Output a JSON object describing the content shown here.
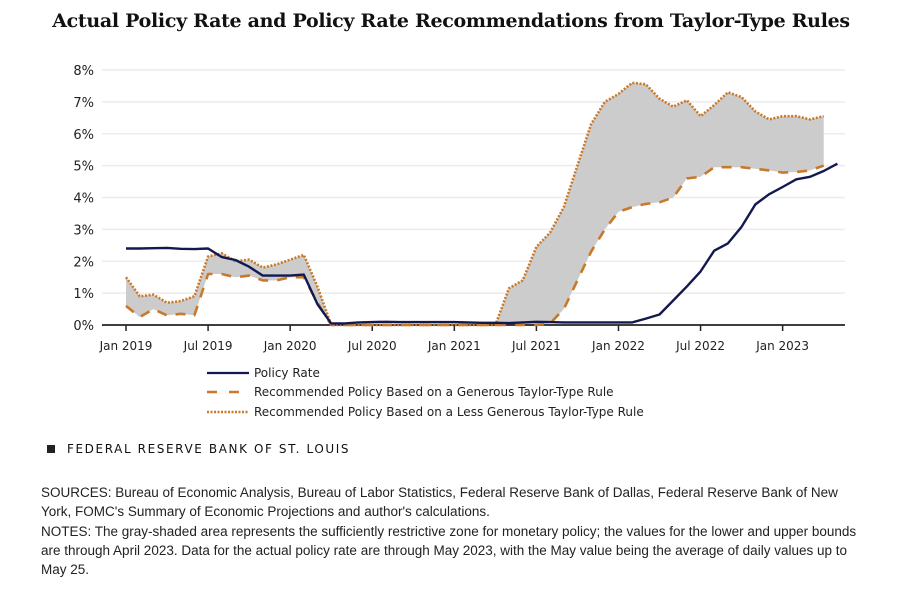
{
  "chart_data": {
    "type": "line",
    "title": "Actual Policy Rate and Policy Rate Recommendations from Taylor-Type Rules",
    "xlabel": "",
    "ylabel": "",
    "ylim": [
      0,
      8
    ],
    "y_ticks": [
      "0%",
      "1%",
      "2%",
      "3%",
      "4%",
      "5%",
      "6%",
      "7%",
      "8%"
    ],
    "x_ticks": [
      "Jan 2019",
      "Jul 2019",
      "Jan 2020",
      "Jul 2020",
      "Jan 2021",
      "Jul 2021",
      "Jan 2022",
      "Jul 2022",
      "Jan 2023"
    ],
    "x_tick_month_index": [
      0,
      6,
      12,
      18,
      24,
      30,
      36,
      42,
      48
    ],
    "x_start": "Jan 2019",
    "x_end": "May 2023",
    "grid": true,
    "legend_position": "bottom",
    "shaded_area": "between Generous (lower) and Less Generous (upper) rule recommendations",
    "series": [
      {
        "name": "Policy Rate",
        "style": "solid",
        "color": "#13194f",
        "start_month_index": 0,
        "values": [
          2.4,
          2.4,
          2.41,
          2.42,
          2.39,
          2.38,
          2.4,
          2.13,
          2.04,
          1.83,
          1.55,
          1.55,
          1.55,
          1.58,
          0.65,
          0.05,
          0.05,
          0.08,
          0.09,
          0.1,
          0.09,
          0.09,
          0.09,
          0.09,
          0.09,
          0.08,
          0.07,
          0.07,
          0.06,
          0.08,
          0.1,
          0.09,
          0.08,
          0.08,
          0.08,
          0.08,
          0.08,
          0.08,
          0.2,
          0.33,
          0.77,
          1.21,
          1.68,
          2.33,
          2.56,
          3.08,
          3.78,
          4.1,
          4.33,
          4.57,
          4.65,
          4.83,
          5.06
        ]
      },
      {
        "name": "Recommended Policy Based on a Generous Taylor-Type Rule",
        "style": "dashed",
        "color": "#c9792a",
        "start_month_index": 0,
        "values": [
          0.6,
          0.25,
          0.5,
          0.3,
          0.35,
          0.3,
          1.6,
          1.6,
          1.5,
          1.55,
          1.4,
          1.4,
          1.5,
          1.5,
          0.7,
          0.0,
          0.0,
          0.0,
          0.0,
          0.0,
          0.0,
          0.0,
          0.0,
          0.0,
          0.0,
          0.0,
          0.0,
          0.0,
          0.0,
          0.0,
          0.0,
          0.05,
          0.5,
          1.4,
          2.3,
          3.0,
          3.55,
          3.7,
          3.8,
          3.85,
          4.0,
          4.6,
          4.65,
          4.95,
          4.95,
          4.95,
          4.9,
          4.85,
          4.78,
          4.8,
          4.85,
          5.0
        ]
      },
      {
        "name": "Recommended Policy Based on a Less Generous Taylor-Type Rule",
        "style": "dotted",
        "color": "#c9792a",
        "start_month_index": 0,
        "values": [
          1.5,
          0.9,
          0.95,
          0.7,
          0.75,
          0.9,
          2.15,
          2.25,
          2.0,
          2.05,
          1.8,
          1.9,
          2.05,
          2.2,
          1.2,
          0.0,
          0.0,
          0.0,
          0.0,
          0.0,
          0.0,
          0.0,
          0.0,
          0.0,
          0.0,
          0.0,
          0.0,
          0.0,
          1.15,
          1.4,
          2.45,
          2.9,
          3.7,
          5.0,
          6.3,
          7.0,
          7.25,
          7.6,
          7.55,
          7.1,
          6.85,
          7.05,
          6.55,
          6.9,
          7.3,
          7.15,
          6.7,
          6.45,
          6.55,
          6.55,
          6.45,
          6.55
        ]
      }
    ],
    "colors": {
      "policy_rate": "#13194f",
      "rules": "#c9792a",
      "shade": "#cccccc",
      "grid": "#ececec",
      "axis": "#222222"
    }
  },
  "legend": {
    "items": [
      {
        "label": "Policy Rate"
      },
      {
        "label": "Recommended Policy Based on a Generous Taylor-Type Rule"
      },
      {
        "label": "Recommended Policy Based on a Less Generous Taylor-Type Rule"
      }
    ]
  },
  "footer": {
    "brand": "FEDERAL RESERVE BANK OF ST. LOUIS",
    "sources": "SOURCES: Bureau of Economic Analysis, Bureau of Labor Statistics, Federal Reserve Bank of Dallas, Federal Reserve Bank of New York, FOMC's Summary of Economic Projections and author's calculations.",
    "notes": "NOTES: The gray-shaded area represents the sufficiently restrictive zone for monetary policy; the values for the lower and upper bounds are through April 2023. Data for the actual policy rate are through May 2023, with the May value being the average of daily values up to May 25."
  }
}
